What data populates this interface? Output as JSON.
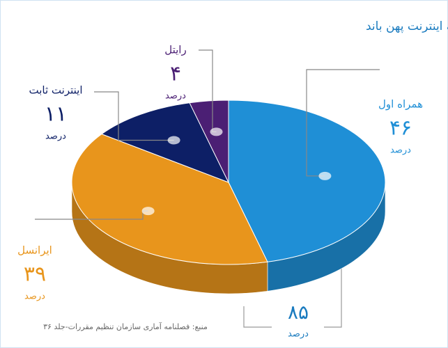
{
  "chart_data": {
    "type": "pie",
    "title": "توزیع دسترسی کاربران ایرانی به اینترنت پهن باند",
    "categories": [
      "همراه اول",
      "ایرانسل",
      "اینترنت ثابت",
      "رایتل"
    ],
    "values": [
      46,
      39,
      11,
      4
    ],
    "value_labels": [
      "۴۶",
      "۳۹",
      "۱۱",
      "۴"
    ],
    "unit": "درصد",
    "colors": [
      "#1f8fd6",
      "#e8951c",
      "#0d1f66",
      "#4b1f74"
    ],
    "annotation": {
      "text": "۸۵",
      "unit": "درصد"
    },
    "source": "منبع: فصلنامه آماری سازمان تنظیم مقررات-جلد ۳۶"
  }
}
